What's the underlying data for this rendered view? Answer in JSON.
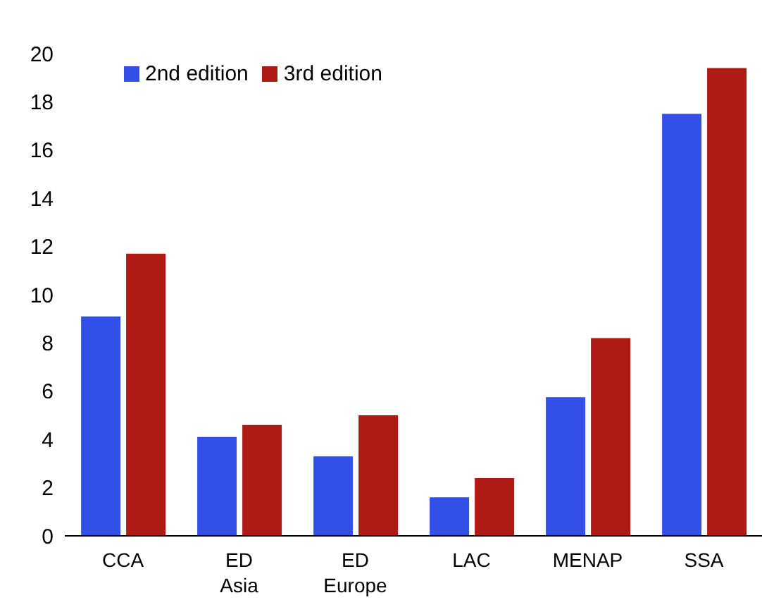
{
  "chart_data": {
    "type": "bar",
    "categories": [
      "CCA",
      "ED Asia",
      "ED Europe",
      "LAC",
      "MENAP",
      "SSA"
    ],
    "series": [
      {
        "name": "2nd edition",
        "color": "#3250e8",
        "values": [
          9.1,
          4.1,
          3.3,
          1.6,
          5.75,
          17.5
        ]
      },
      {
        "name": "3rd edition",
        "color": "#b01a14",
        "values": [
          11.7,
          4.6,
          5.0,
          2.4,
          8.2,
          19.4
        ]
      }
    ],
    "ylim": [
      0,
      20
    ],
    "yticks": [
      0,
      2,
      4,
      6,
      8,
      10,
      12,
      14,
      16,
      18,
      20
    ],
    "grid": false,
    "legend": "top left"
  }
}
